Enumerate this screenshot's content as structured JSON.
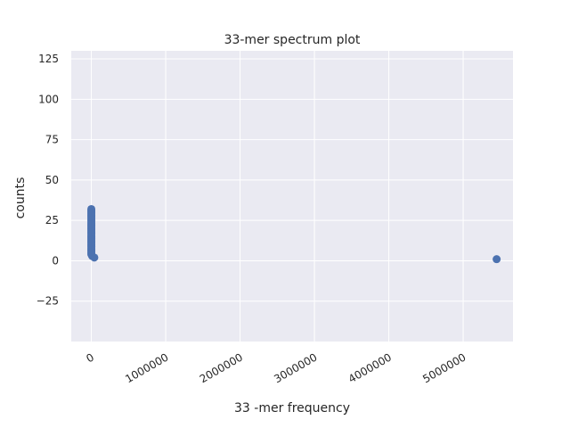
{
  "chart_data": {
    "type": "scatter",
    "title": "33-mer spectrum plot",
    "xlabel": "33 -mer frequency",
    "ylabel": "counts",
    "xlim": [
      -270000,
      5670000
    ],
    "ylim": [
      -50,
      130
    ],
    "x_ticks": [
      0,
      1000000,
      2000000,
      3000000,
      4000000,
      5000000
    ],
    "x_tick_labels": [
      "0",
      "1000000",
      "2000000",
      "3000000",
      "4000000",
      "5000000"
    ],
    "y_ticks": [
      -25,
      0,
      25,
      50,
      75,
      100,
      125
    ],
    "y_tick_labels": [
      "−25",
      "0",
      "25",
      "50",
      "75",
      "100",
      "125"
    ],
    "grid": true,
    "colors": {
      "background": "#eaeaf2",
      "grid": "#ffffff",
      "point": "#4c72b0"
    },
    "points": [
      {
        "x": 0,
        "y": 32
      },
      {
        "x": 0,
        "y": 31
      },
      {
        "x": 0,
        "y": 30
      },
      {
        "x": 0,
        "y": 29
      },
      {
        "x": 0,
        "y": 28
      },
      {
        "x": 0,
        "y": 27
      },
      {
        "x": 0,
        "y": 26
      },
      {
        "x": 0,
        "y": 25
      },
      {
        "x": 0,
        "y": 24
      },
      {
        "x": 0,
        "y": 23
      },
      {
        "x": 0,
        "y": 22
      },
      {
        "x": 0,
        "y": 21
      },
      {
        "x": 0,
        "y": 20
      },
      {
        "x": 0,
        "y": 19
      },
      {
        "x": 0,
        "y": 18
      },
      {
        "x": 0,
        "y": 17
      },
      {
        "x": 0,
        "y": 16
      },
      {
        "x": 0,
        "y": 15
      },
      {
        "x": 0,
        "y": 14
      },
      {
        "x": 0,
        "y": 13
      },
      {
        "x": 0,
        "y": 12
      },
      {
        "x": 0,
        "y": 11
      },
      {
        "x": 0,
        "y": 10
      },
      {
        "x": 0,
        "y": 9
      },
      {
        "x": 0,
        "y": 8
      },
      {
        "x": 0,
        "y": 7
      },
      {
        "x": 0,
        "y": 6
      },
      {
        "x": 0,
        "y": 5
      },
      {
        "x": 0,
        "y": 4
      },
      {
        "x": 10000,
        "y": 3
      },
      {
        "x": 40000,
        "y": 2
      },
      {
        "x": 5450000,
        "y": 1
      }
    ]
  }
}
